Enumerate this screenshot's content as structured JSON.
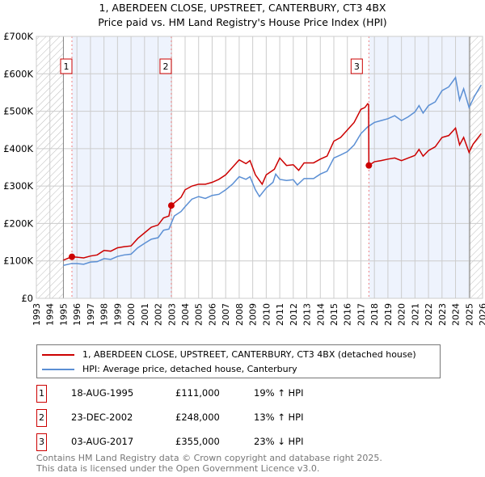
{
  "chart_data": {
    "type": "line",
    "title": "1, ABERDEEN CLOSE, UPSTREET, CANTERBURY, CT3 4BX",
    "subtitle": "Price paid vs. HM Land Registry's House Price Index (HPI)",
    "xlim": [
      1993,
      2026
    ],
    "ylim": [
      0,
      700000
    ],
    "x_ticks": [
      "1993",
      "1994",
      "1995",
      "1996",
      "1997",
      "1998",
      "1999",
      "2000",
      "2001",
      "2002",
      "2003",
      "2004",
      "2005",
      "2006",
      "2007",
      "2008",
      "2009",
      "2010",
      "2011",
      "2012",
      "2013",
      "2014",
      "2015",
      "2016",
      "2017",
      "2018",
      "2019",
      "2020",
      "2021",
      "2022",
      "2023",
      "2024",
      "2025",
      "2026"
    ],
    "y_ticks": [
      {
        "v": 0,
        "label": "£0"
      },
      {
        "v": 100000,
        "label": "£100K"
      },
      {
        "v": 200000,
        "label": "£200K"
      },
      {
        "v": 300000,
        "label": "£300K"
      },
      {
        "v": 400000,
        "label": "£400K"
      },
      {
        "v": 500000,
        "label": "£500K"
      },
      {
        "v": 600000,
        "label": "£600K"
      },
      {
        "v": 700000,
        "label": "£700K"
      }
    ],
    "grid": true,
    "series": [
      {
        "name": "1, ABERDEEN CLOSE, UPSTREET, CANTERBURY, CT3 4BX (detached house)",
        "color": "#cc0000",
        "points": [
          [
            1995,
            102
          ],
          [
            1995.6,
            111
          ],
          [
            1996,
            110
          ],
          [
            1996.5,
            108
          ],
          [
            1997,
            113
          ],
          [
            1997.5,
            116
          ],
          [
            1998,
            128
          ],
          [
            1998.5,
            126
          ],
          [
            1999,
            135
          ],
          [
            1999.5,
            138
          ],
          [
            2000,
            140
          ],
          [
            2000.5,
            160
          ],
          [
            2001,
            175
          ],
          [
            2001.5,
            190
          ],
          [
            2002,
            196
          ],
          [
            2002.4,
            215
          ],
          [
            2002.8,
            220
          ],
          [
            2002.96,
            248
          ],
          [
            2003.2,
            255
          ],
          [
            2003.7,
            270
          ],
          [
            2004,
            290
          ],
          [
            2004.5,
            300
          ],
          [
            2005,
            305
          ],
          [
            2005.5,
            305
          ],
          [
            2006,
            310
          ],
          [
            2006.5,
            318
          ],
          [
            2007,
            330
          ],
          [
            2007.5,
            350
          ],
          [
            2008,
            370
          ],
          [
            2008.5,
            360
          ],
          [
            2008.8,
            368
          ],
          [
            2009.2,
            330
          ],
          [
            2009.7,
            305
          ],
          [
            2010,
            330
          ],
          [
            2010.6,
            345
          ],
          [
            2011,
            375
          ],
          [
            2011.5,
            355
          ],
          [
            2012,
            357
          ],
          [
            2012.4,
            342
          ],
          [
            2012.8,
            362
          ],
          [
            2013.5,
            362
          ],
          [
            2014,
            372
          ],
          [
            2014.5,
            380
          ],
          [
            2015,
            420
          ],
          [
            2015.5,
            430
          ],
          [
            2016,
            450
          ],
          [
            2016.5,
            470
          ],
          [
            2017,
            505
          ],
          [
            2017.3,
            510
          ],
          [
            2017.5,
            520
          ],
          [
            2017.57,
            518
          ],
          [
            2017.59,
            355
          ],
          [
            2018,
            365
          ],
          [
            2018.5,
            368
          ],
          [
            2019,
            372
          ],
          [
            2019.5,
            375
          ],
          [
            2020,
            368
          ],
          [
            2020.5,
            375
          ],
          [
            2021,
            382
          ],
          [
            2021.3,
            398
          ],
          [
            2021.6,
            380
          ],
          [
            2022,
            395
          ],
          [
            2022.5,
            405
          ],
          [
            2023,
            430
          ],
          [
            2023.5,
            435
          ],
          [
            2024,
            455
          ],
          [
            2024.3,
            410
          ],
          [
            2024.6,
            430
          ],
          [
            2025,
            390
          ],
          [
            2025.3,
            412
          ],
          [
            2025.9,
            440
          ]
        ]
      },
      {
        "name": "HPI: Average price, detached house, Canterbury",
        "color": "#5b8fd4",
        "points": [
          [
            1995,
            88
          ],
          [
            1995.6,
            93
          ],
          [
            1996,
            93
          ],
          [
            1996.5,
            91
          ],
          [
            1997,
            97
          ],
          [
            1997.5,
            98
          ],
          [
            1998,
            106
          ],
          [
            1998.5,
            104
          ],
          [
            1999,
            112
          ],
          [
            1999.5,
            116
          ],
          [
            2000,
            118
          ],
          [
            2000.5,
            135
          ],
          [
            2001,
            147
          ],
          [
            2001.5,
            158
          ],
          [
            2002,
            162
          ],
          [
            2002.4,
            182
          ],
          [
            2002.8,
            185
          ],
          [
            2003.2,
            220
          ],
          [
            2003.7,
            232
          ],
          [
            2004,
            245
          ],
          [
            2004.5,
            265
          ],
          [
            2005,
            272
          ],
          [
            2005.5,
            267
          ],
          [
            2006,
            275
          ],
          [
            2006.5,
            278
          ],
          [
            2007,
            290
          ],
          [
            2007.5,
            305
          ],
          [
            2008,
            325
          ],
          [
            2008.5,
            318
          ],
          [
            2008.8,
            325
          ],
          [
            2009.2,
            290
          ],
          [
            2009.5,
            272
          ],
          [
            2010,
            295
          ],
          [
            2010.5,
            310
          ],
          [
            2010.7,
            332
          ],
          [
            2011,
            318
          ],
          [
            2011.5,
            315
          ],
          [
            2012,
            317
          ],
          [
            2012.3,
            303
          ],
          [
            2012.8,
            320
          ],
          [
            2013.5,
            320
          ],
          [
            2014,
            332
          ],
          [
            2014.5,
            340
          ],
          [
            2015,
            375
          ],
          [
            2015.5,
            383
          ],
          [
            2016,
            392
          ],
          [
            2016.5,
            410
          ],
          [
            2017,
            440
          ],
          [
            2017.5,
            458
          ],
          [
            2018,
            470
          ],
          [
            2018.5,
            475
          ],
          [
            2019,
            480
          ],
          [
            2019.5,
            488
          ],
          [
            2020,
            475
          ],
          [
            2020.5,
            485
          ],
          [
            2021,
            498
          ],
          [
            2021.3,
            515
          ],
          [
            2021.6,
            495
          ],
          [
            2022,
            515
          ],
          [
            2022.5,
            525
          ],
          [
            2023,
            555
          ],
          [
            2023.5,
            565
          ],
          [
            2024,
            590
          ],
          [
            2024.3,
            530
          ],
          [
            2024.6,
            560
          ],
          [
            2025,
            510
          ],
          [
            2025.4,
            540
          ],
          [
            2025.9,
            570
          ]
        ]
      }
    ],
    "sales": [
      {
        "label": "1",
        "x": 1995.63,
        "y": 111
      },
      {
        "label": "2",
        "x": 2002.98,
        "y": 248
      },
      {
        "label": "3",
        "x": 2017.59,
        "y": 355
      }
    ]
  },
  "legend": {
    "red": "1, ABERDEEN CLOSE, UPSTREET, CANTERBURY, CT3 4BX (detached house)",
    "blue": "HPI: Average price, detached house, Canterbury"
  },
  "transactions": [
    {
      "num": "1",
      "date": "18-AUG-1995",
      "price": "£111,000",
      "hpi": "19% ↑ HPI"
    },
    {
      "num": "2",
      "date": "23-DEC-2002",
      "price": "£248,000",
      "hpi": "13% ↑ HPI"
    },
    {
      "num": "3",
      "date": "03-AUG-2017",
      "price": "£355,000",
      "hpi": "23% ↓ HPI"
    }
  ],
  "footer": {
    "line1": "Contains HM Land Registry data © Crown copyright and database right 2025.",
    "line2": "This data is licensed under the Open Government Licence v3.0."
  }
}
